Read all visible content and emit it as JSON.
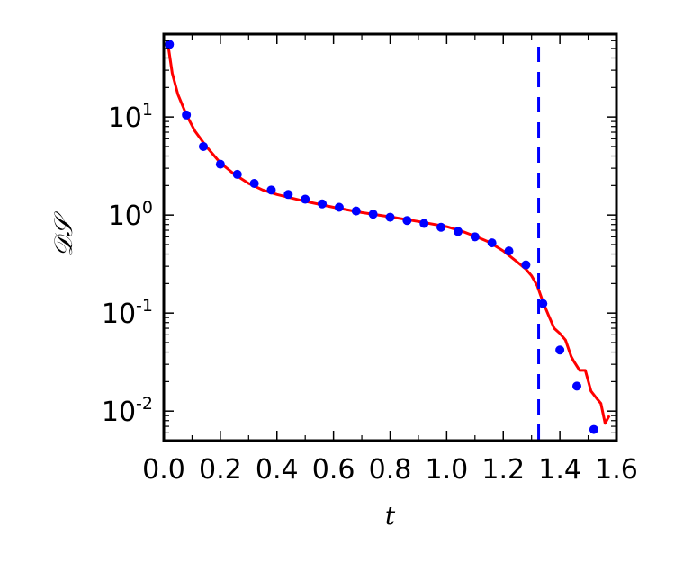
{
  "chart_data": {
    "type": "line",
    "title": "",
    "xlabel": "t",
    "ylabel": "𝒟𝒮",
    "xlim": [
      0.0,
      1.6
    ],
    "ylim": [
      0.005,
      70
    ],
    "yscale": "log",
    "grid": false,
    "x_ticks": [
      0.0,
      0.2,
      0.4,
      0.6,
      0.8,
      1.0,
      1.2,
      1.4,
      1.6
    ],
    "x_tick_labels": [
      "0.0",
      "0.2",
      "0.4",
      "0.6",
      "0.8",
      "1.0",
      "1.2",
      "1.4",
      "1.6"
    ],
    "y_ticks": [
      0.01,
      0.1,
      1,
      10
    ],
    "y_tick_labels": [
      {
        "base": "10",
        "exp": "-2"
      },
      {
        "base": "10",
        "exp": "-1"
      },
      {
        "base": "10",
        "exp": "0"
      },
      {
        "base": "10",
        "exp": "1"
      }
    ],
    "series": [
      {
        "kind": "line",
        "color": "#ff0000",
        "x": [
          0.015,
          0.03,
          0.05,
          0.08,
          0.11,
          0.15,
          0.2,
          0.25,
          0.3,
          0.35,
          0.4,
          0.5,
          0.6,
          0.7,
          0.8,
          0.9,
          1.0,
          1.05,
          1.1,
          1.15,
          1.2,
          1.25,
          1.28,
          1.3,
          1.32,
          1.34,
          1.36,
          1.38,
          1.4,
          1.42,
          1.44,
          1.45,
          1.47,
          1.49,
          1.51,
          1.53,
          1.545,
          1.56,
          1.575
        ],
        "y": [
          55,
          28,
          17,
          10.5,
          7.2,
          5.0,
          3.4,
          2.6,
          2.1,
          1.8,
          1.62,
          1.38,
          1.2,
          1.06,
          0.96,
          0.86,
          0.76,
          0.69,
          0.61,
          0.53,
          0.43,
          0.33,
          0.28,
          0.24,
          0.19,
          0.13,
          0.095,
          0.07,
          0.062,
          0.053,
          0.036,
          0.032,
          0.026,
          0.026,
          0.016,
          0.0135,
          0.012,
          0.0075,
          0.009
        ]
      },
      {
        "kind": "scatter",
        "color": "#0000ff",
        "x": [
          0.02,
          0.08,
          0.14,
          0.2,
          0.26,
          0.32,
          0.38,
          0.44,
          0.5,
          0.56,
          0.62,
          0.68,
          0.74,
          0.8,
          0.86,
          0.92,
          0.98,
          1.04,
          1.1,
          1.16,
          1.22,
          1.28,
          1.34,
          1.4,
          1.46,
          1.52
        ],
        "y": [
          55,
          10.5,
          5.0,
          3.3,
          2.6,
          2.1,
          1.8,
          1.62,
          1.45,
          1.3,
          1.2,
          1.1,
          1.02,
          0.95,
          0.88,
          0.82,
          0.75,
          0.68,
          0.6,
          0.52,
          0.43,
          0.31,
          0.125,
          0.042,
          0.018,
          0.0065
        ]
      },
      {
        "kind": "vline",
        "color": "#0000ff",
        "style": "dashed",
        "x": 1.325
      }
    ]
  }
}
